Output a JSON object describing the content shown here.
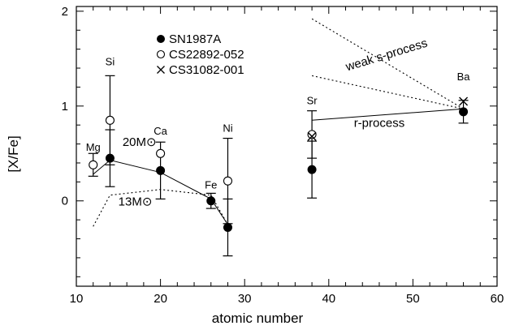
{
  "chart_data": {
    "type": "scatter",
    "xlabel": "atomic number",
    "ylabel": "[X/Fe]",
    "xlim": [
      10,
      60
    ],
    "ylim": [
      -0.9,
      2.05
    ],
    "x_ticks": [
      10,
      20,
      30,
      40,
      50,
      60
    ],
    "y_ticks": [
      0,
      1,
      2
    ],
    "grid": false,
    "legend_position": "top-left",
    "legend": [
      {
        "marker": "filled-circle",
        "label": "SN1987A"
      },
      {
        "marker": "open-circle",
        "label": "CS22892-052"
      },
      {
        "marker": "cross",
        "label": "CS31082-001"
      }
    ],
    "series": [
      {
        "name": "SN1987A",
        "marker": "filled-circle",
        "points": [
          {
            "x": 14,
            "y": 0.45,
            "err": [
              0.3,
              0.3
            ]
          },
          {
            "x": 20,
            "y": 0.32,
            "err": [
              0.3,
              0.3
            ]
          },
          {
            "x": 26,
            "y": 0.0,
            "err": [
              0.08,
              0.08
            ]
          },
          {
            "x": 28,
            "y": -0.28,
            "err": [
              0.3,
              0.3
            ]
          },
          {
            "x": 38,
            "y": 0.33,
            "err": [
              0.3,
              0.3
            ]
          },
          {
            "x": 56,
            "y": 0.94,
            "err": [
              0.12,
              0.12
            ]
          }
        ]
      },
      {
        "name": "CS22892-052",
        "marker": "open-circle",
        "points": [
          {
            "x": 12,
            "y": 0.38,
            "err": [
              0.12,
              0.12
            ]
          },
          {
            "x": 14,
            "y": 0.85,
            "err": [
              0.47,
              0.47
            ]
          },
          {
            "x": 20,
            "y": 0.5
          },
          {
            "x": 28,
            "y": 0.21,
            "err": [
              0.45,
              0.45
            ]
          },
          {
            "x": 38,
            "y": 0.7,
            "err": [
              0.25,
              0.25
            ]
          }
        ]
      },
      {
        "name": "CS31082-001",
        "marker": "cross",
        "points": [
          {
            "x": 38,
            "y": 0.68
          },
          {
            "x": 56,
            "y": 1.05
          }
        ]
      }
    ],
    "lines": [
      {
        "label": "20M⊙",
        "style": "solid",
        "x": [
          12,
          14,
          20,
          26,
          28
        ],
        "y": [
          0.28,
          0.43,
          0.3,
          0.02,
          -0.25
        ]
      },
      {
        "label": "13M⊙",
        "style": "dotted",
        "x": [
          12,
          14,
          20,
          26,
          28
        ],
        "y": [
          -0.27,
          0.06,
          0.12,
          0.06,
          -0.25
        ]
      },
      {
        "label": "r-process",
        "style": "solid",
        "x": [
          38,
          56
        ],
        "y": [
          0.85,
          0.97
        ]
      },
      {
        "label": "weak s-process",
        "style": "dotted",
        "x": [
          38,
          56
        ],
        "y": [
          1.92,
          0.97
        ]
      },
      {
        "style": "dotted",
        "x": [
          38,
          56
        ],
        "y": [
          1.32,
          0.97
        ]
      }
    ],
    "element_labels": [
      {
        "text": "Mg",
        "x": 12,
        "y": 0.53
      },
      {
        "text": "Si",
        "x": 14,
        "y": 1.43
      },
      {
        "text": "Ca",
        "x": 20,
        "y": 0.7
      },
      {
        "text": "Fe",
        "x": 26,
        "y": 0.13
      },
      {
        "text": "Ni",
        "x": 28,
        "y": 0.73
      },
      {
        "text": "Sr",
        "x": 38,
        "y": 1.02
      },
      {
        "text": "Ba",
        "x": 56,
        "y": 1.27
      }
    ],
    "annotations": [
      {
        "text": "weak s-process",
        "x": 47,
        "y": 1.5,
        "rotate": -17
      },
      {
        "text": "r-process",
        "x": 46,
        "y": 0.78,
        "rotate": 0
      },
      {
        "text": "20M⊙",
        "x": 17.5,
        "y": 0.58,
        "rotate": 0
      },
      {
        "text": "13M⊙",
        "x": 17,
        "y": -0.05,
        "rotate": 0
      }
    ]
  }
}
